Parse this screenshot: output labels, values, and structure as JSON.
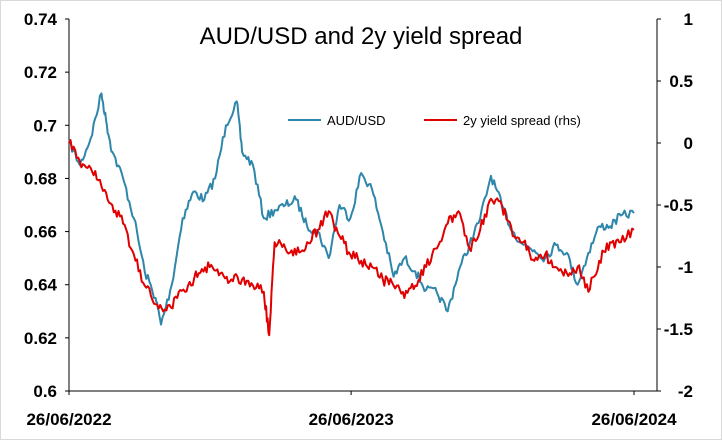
{
  "chart_data": {
    "type": "line",
    "title": "AUD/USD and 2y yield spread",
    "xlabel": "",
    "ylabel": "",
    "x_tick_labels": [
      "26/06/2022",
      "26/06/2023",
      "26/06/2024"
    ],
    "x_range": [
      "2022-06-26",
      "2024-06-26"
    ],
    "left_axis": {
      "ylim": [
        0.6,
        0.74
      ],
      "ticks": [
        "0.6",
        "0.62",
        "0.64",
        "0.66",
        "0.68",
        "0.7",
        "0.72",
        "0.74"
      ]
    },
    "right_axis": {
      "ylim": [
        -2,
        1
      ],
      "ticks": [
        "-2",
        "-1.5",
        "-1",
        "-0.5",
        "0",
        "0.5",
        "1"
      ]
    },
    "legend_position": "top-center",
    "grid": false,
    "series": [
      {
        "name": "AUD/USD",
        "axis": "left",
        "color": "#2E86AB",
        "x": [
          "2022-06-26",
          "2022-07-10",
          "2022-07-24",
          "2022-08-07",
          "2022-08-14",
          "2022-08-21",
          "2022-09-04",
          "2022-09-18",
          "2022-10-02",
          "2022-10-16",
          "2022-10-23",
          "2022-11-06",
          "2022-11-20",
          "2022-12-04",
          "2022-12-18",
          "2023-01-01",
          "2023-01-15",
          "2023-01-29",
          "2023-02-05",
          "2023-02-19",
          "2023-03-05",
          "2023-03-19",
          "2023-04-02",
          "2023-04-16",
          "2023-04-30",
          "2023-05-14",
          "2023-05-28",
          "2023-06-11",
          "2023-06-25",
          "2023-07-09",
          "2023-07-23",
          "2023-08-06",
          "2023-08-20",
          "2023-09-03",
          "2023-09-17",
          "2023-10-01",
          "2023-10-15",
          "2023-10-29",
          "2023-11-12",
          "2023-11-26",
          "2023-12-10",
          "2023-12-24",
          "2024-01-07",
          "2024-01-21",
          "2024-02-04",
          "2024-02-18",
          "2024-03-03",
          "2024-03-17",
          "2024-03-31",
          "2024-04-14",
          "2024-04-28",
          "2024-05-12",
          "2024-05-26",
          "2024-06-09",
          "2024-06-26"
        ],
        "values": [
          0.694,
          0.685,
          0.695,
          0.712,
          0.7,
          0.69,
          0.68,
          0.665,
          0.645,
          0.635,
          0.625,
          0.64,
          0.665,
          0.675,
          0.672,
          0.68,
          0.7,
          0.709,
          0.69,
          0.685,
          0.665,
          0.668,
          0.67,
          0.672,
          0.662,
          0.66,
          0.65,
          0.67,
          0.665,
          0.682,
          0.676,
          0.66,
          0.643,
          0.65,
          0.645,
          0.638,
          0.637,
          0.63,
          0.645,
          0.655,
          0.665,
          0.681,
          0.67,
          0.66,
          0.655,
          0.653,
          0.65,
          0.655,
          0.652,
          0.64,
          0.652,
          0.662,
          0.662,
          0.666,
          0.667
        ]
      },
      {
        "name": "2y yield spread (rhs)",
        "axis": "right",
        "color": "#E00000",
        "x": [
          "2022-06-26",
          "2022-07-10",
          "2022-07-24",
          "2022-08-07",
          "2022-08-21",
          "2022-09-04",
          "2022-09-18",
          "2022-10-02",
          "2022-10-16",
          "2022-10-30",
          "2022-11-13",
          "2022-11-27",
          "2022-12-11",
          "2022-12-25",
          "2023-01-08",
          "2023-01-22",
          "2023-02-05",
          "2023-02-19",
          "2023-03-05",
          "2023-03-12",
          "2023-03-19",
          "2023-04-02",
          "2023-04-16",
          "2023-04-30",
          "2023-05-14",
          "2023-05-28",
          "2023-06-11",
          "2023-06-25",
          "2023-07-09",
          "2023-07-23",
          "2023-08-06",
          "2023-08-20",
          "2023-09-03",
          "2023-09-17",
          "2023-10-01",
          "2023-10-15",
          "2023-10-29",
          "2023-11-12",
          "2023-11-26",
          "2023-12-10",
          "2023-12-24",
          "2024-01-07",
          "2024-01-21",
          "2024-02-04",
          "2024-02-18",
          "2024-03-03",
          "2024-03-17",
          "2024-03-31",
          "2024-04-14",
          "2024-04-28",
          "2024-05-12",
          "2024-05-26",
          "2024-06-09",
          "2024-06-26"
        ],
        "values": [
          0.0,
          -0.15,
          -0.2,
          -0.35,
          -0.5,
          -0.65,
          -0.9,
          -1.15,
          -1.3,
          -1.35,
          -1.25,
          -1.15,
          -1.05,
          -1.0,
          -1.05,
          -1.1,
          -1.1,
          -1.15,
          -1.2,
          -1.55,
          -0.8,
          -0.85,
          -0.9,
          -0.8,
          -0.7,
          -0.55,
          -0.75,
          -0.9,
          -0.95,
          -1.0,
          -1.1,
          -1.15,
          -1.25,
          -1.15,
          -1.0,
          -0.85,
          -0.65,
          -0.55,
          -0.85,
          -0.7,
          -0.45,
          -0.5,
          -0.75,
          -0.8,
          -0.95,
          -0.9,
          -1.0,
          -1.05,
          -1.0,
          -1.2,
          -0.95,
          -0.8,
          -0.8,
          -0.7
        ]
      }
    ]
  },
  "colors": {
    "aud_line": "#2E86AB",
    "spread_line": "#E00000",
    "axis": "#000000"
  }
}
